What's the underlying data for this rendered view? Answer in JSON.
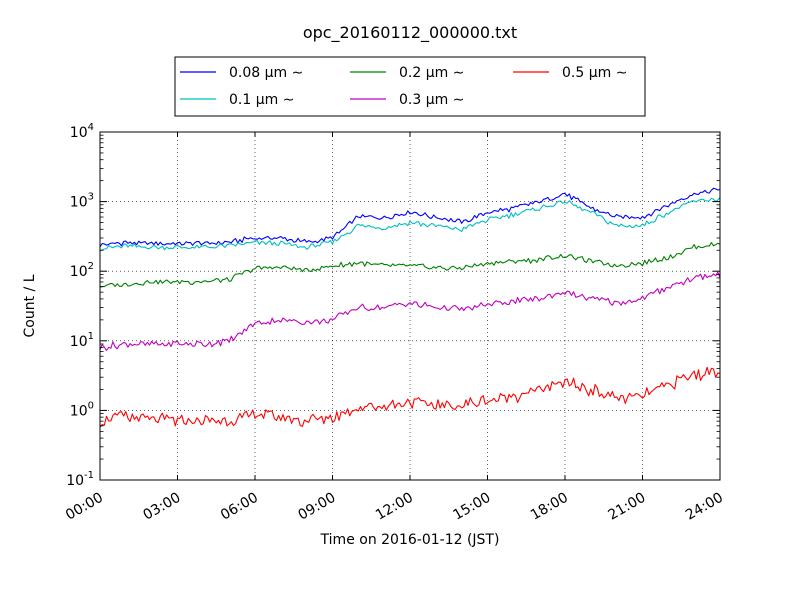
{
  "chart_data": {
    "type": "line",
    "title": "opc_20160112_000000.txt",
    "xlabel": "Time on 2016-01-12 (JST)",
    "ylabel": "Count / L",
    "xscale": "time",
    "xlim": [
      "00:00",
      "24:00"
    ],
    "yscale": "log",
    "ylim": [
      0.1,
      10000
    ],
    "grid": true,
    "legend_location": "top-center",
    "x_tick_labels": [
      "00:00",
      "03:00",
      "06:00",
      "09:00",
      "12:00",
      "15:00",
      "18:00",
      "21:00",
      "24:00"
    ],
    "y_tick_labels": [
      {
        "base": "10",
        "exp": "-1"
      },
      {
        "base": "10",
        "exp": "0"
      },
      {
        "base": "10",
        "exp": "1"
      },
      {
        "base": "10",
        "exp": "2"
      },
      {
        "base": "10",
        "exp": "3"
      },
      {
        "base": "10",
        "exp": "4"
      }
    ],
    "x": [
      "00:00",
      "01:00",
      "02:00",
      "03:00",
      "04:00",
      "05:00",
      "06:00",
      "07:00",
      "08:00",
      "09:00",
      "10:00",
      "11:00",
      "12:00",
      "13:00",
      "14:00",
      "15:00",
      "16:00",
      "17:00",
      "18:00",
      "19:00",
      "20:00",
      "21:00",
      "22:00",
      "23:00",
      "24:00"
    ],
    "series": [
      {
        "name": "0.08 μm ∼",
        "color": "#0000ff",
        "values": [
          240,
          260,
          250,
          250,
          250,
          260,
          300,
          300,
          260,
          300,
          600,
          600,
          700,
          600,
          500,
          700,
          800,
          1000,
          1300,
          800,
          600,
          600,
          900,
          1300,
          1500
        ]
      },
      {
        "name": "0.1 μm ∼",
        "color": "#00bfbf",
        "values": [
          210,
          230,
          220,
          220,
          220,
          230,
          260,
          250,
          220,
          260,
          450,
          420,
          500,
          450,
          400,
          550,
          650,
          800,
          1000,
          700,
          450,
          450,
          700,
          1000,
          1100
        ]
      },
      {
        "name": "0.2 μm ∼",
        "color": "#008000",
        "values": [
          60,
          65,
          70,
          70,
          72,
          75,
          110,
          115,
          100,
          120,
          130,
          120,
          120,
          110,
          110,
          130,
          140,
          145,
          170,
          140,
          120,
          130,
          160,
          220,
          250
        ]
      },
      {
        "name": "0.3 μm ∼",
        "color": "#bf00bf",
        "values": [
          8,
          9,
          9,
          9,
          9,
          10,
          18,
          20,
          18,
          20,
          30,
          30,
          35,
          30,
          28,
          33,
          37,
          40,
          50,
          40,
          35,
          40,
          60,
          80,
          90
        ]
      },
      {
        "name": "0.5 μm ∼",
        "color": "#ff0000",
        "values": [
          0.7,
          0.8,
          0.75,
          0.7,
          0.7,
          0.7,
          0.9,
          0.8,
          0.7,
          0.8,
          1.1,
          1.2,
          1.3,
          1.2,
          1.2,
          1.4,
          1.6,
          2.0,
          2.5,
          2.0,
          1.5,
          1.6,
          2.4,
          3.2,
          3.8
        ]
      }
    ]
  }
}
